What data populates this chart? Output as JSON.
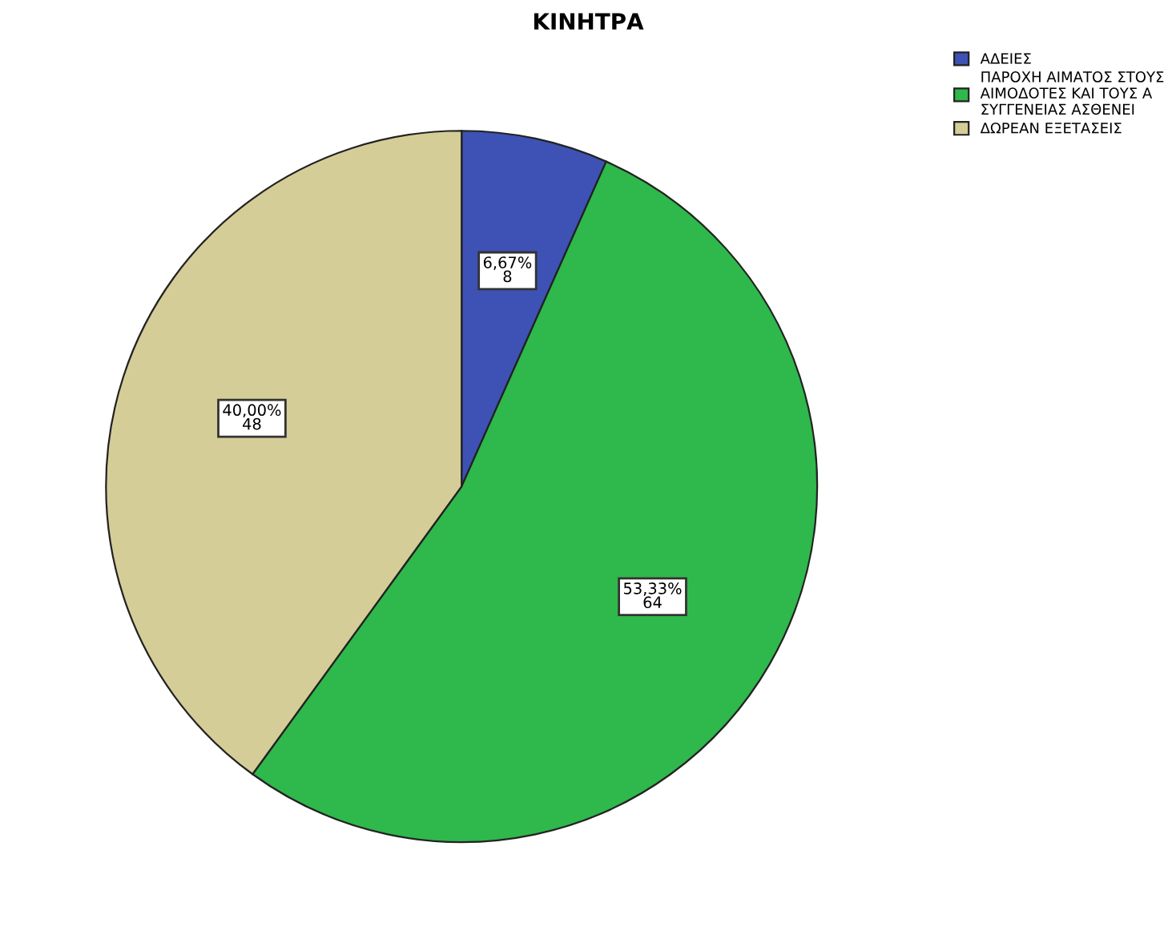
{
  "chart_data": {
    "type": "pie",
    "title": "ΚΙΝΗΤΡΑ",
    "categories": [
      "ΑΔΕΙΕΣ",
      "ΠΑΡΟΧΗ ΑΙΜΑΤΟΣ ΣΤΟΥΣ\nΑΙΜΟΔΟΤΕΣ ΚΑΙ ΤΟΥΣ Α\nΣΥΓΓΕΝΕΙΑΣ ΑΣΘΕΝΕΙ",
      "ΔΩΡΕΑΝ ΕΞΕΤΑΣΕΙΣ"
    ],
    "values": [
      8,
      64,
      48
    ],
    "value_labels": [
      "6,67%\n8",
      "53,33%\n64",
      "40,00%\n48"
    ],
    "colors": [
      "#3d52b4",
      "#2fb84b",
      "#d5cd97"
    ],
    "legend": "top right"
  }
}
